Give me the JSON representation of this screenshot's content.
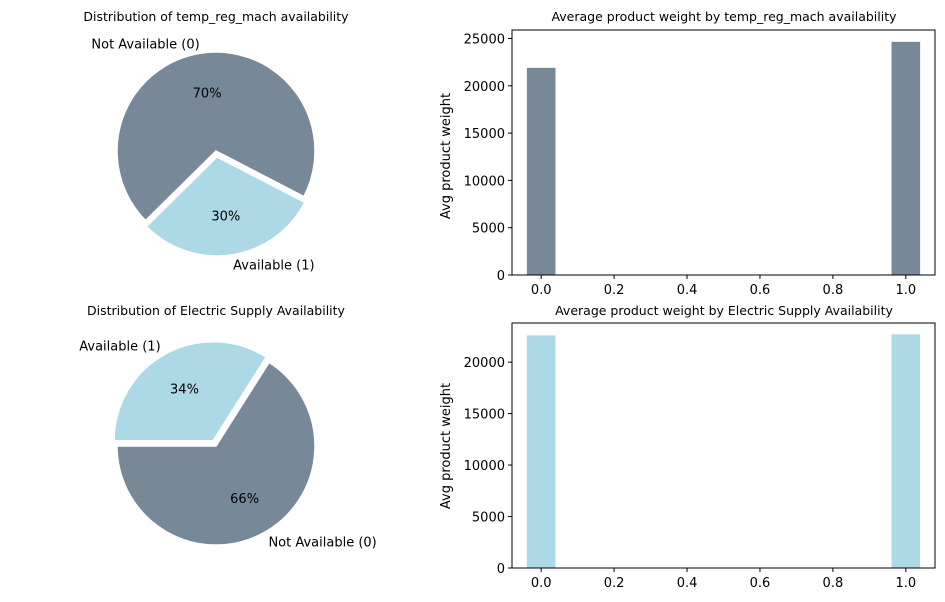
{
  "colors": {
    "slate": "#778899",
    "light_blue": "#add8e6"
  },
  "chart_data": [
    {
      "type": "pie",
      "title": "Distribution of temp_reg_mach availability",
      "slices": [
        {
          "label": "Not Available (0)",
          "value": 70,
          "pct_label": "70%",
          "color": "#778899",
          "exploded": false
        },
        {
          "label": "Available (1)",
          "value": 30,
          "pct_label": "30%",
          "color": "#add8e6",
          "exploded": true
        }
      ]
    },
    {
      "type": "bar",
      "title": "Average product weight by temp_reg_mach availability",
      "xlabel": "",
      "ylabel": "Avg product weight",
      "x": [
        0,
        1
      ],
      "values": [
        21900,
        24650
      ],
      "color": "#778899",
      "xlim": [
        -0.08,
        1.08
      ],
      "ylim": [
        0,
        25900
      ],
      "xticks": [
        "0.0",
        "0.2",
        "0.4",
        "0.6",
        "0.8",
        "1.0"
      ],
      "yticks": [
        "0",
        "5000",
        "10000",
        "15000",
        "20000",
        "25000"
      ],
      "grid": false
    },
    {
      "type": "pie",
      "title": "Distribution of Electric Supply Availability",
      "slices": [
        {
          "label": "Not Available (0)",
          "value": 66,
          "pct_label": "66%",
          "color": "#778899",
          "exploded": false
        },
        {
          "label": "Available (1)",
          "value": 34,
          "pct_label": "34%",
          "color": "#add8e6",
          "exploded": true
        }
      ]
    },
    {
      "type": "bar",
      "title": "Average product weight by Electric Supply Availability",
      "xlabel": "",
      "ylabel": "Avg product weight",
      "x": [
        0,
        1
      ],
      "values": [
        22600,
        22700
      ],
      "color": "#add8e6",
      "xlim": [
        -0.08,
        1.08
      ],
      "ylim": [
        0,
        23800
      ],
      "xticks": [
        "0.0",
        "0.2",
        "0.4",
        "0.6",
        "0.8",
        "1.0"
      ],
      "yticks": [
        "0",
        "5000",
        "10000",
        "15000",
        "20000"
      ],
      "grid": false
    }
  ]
}
